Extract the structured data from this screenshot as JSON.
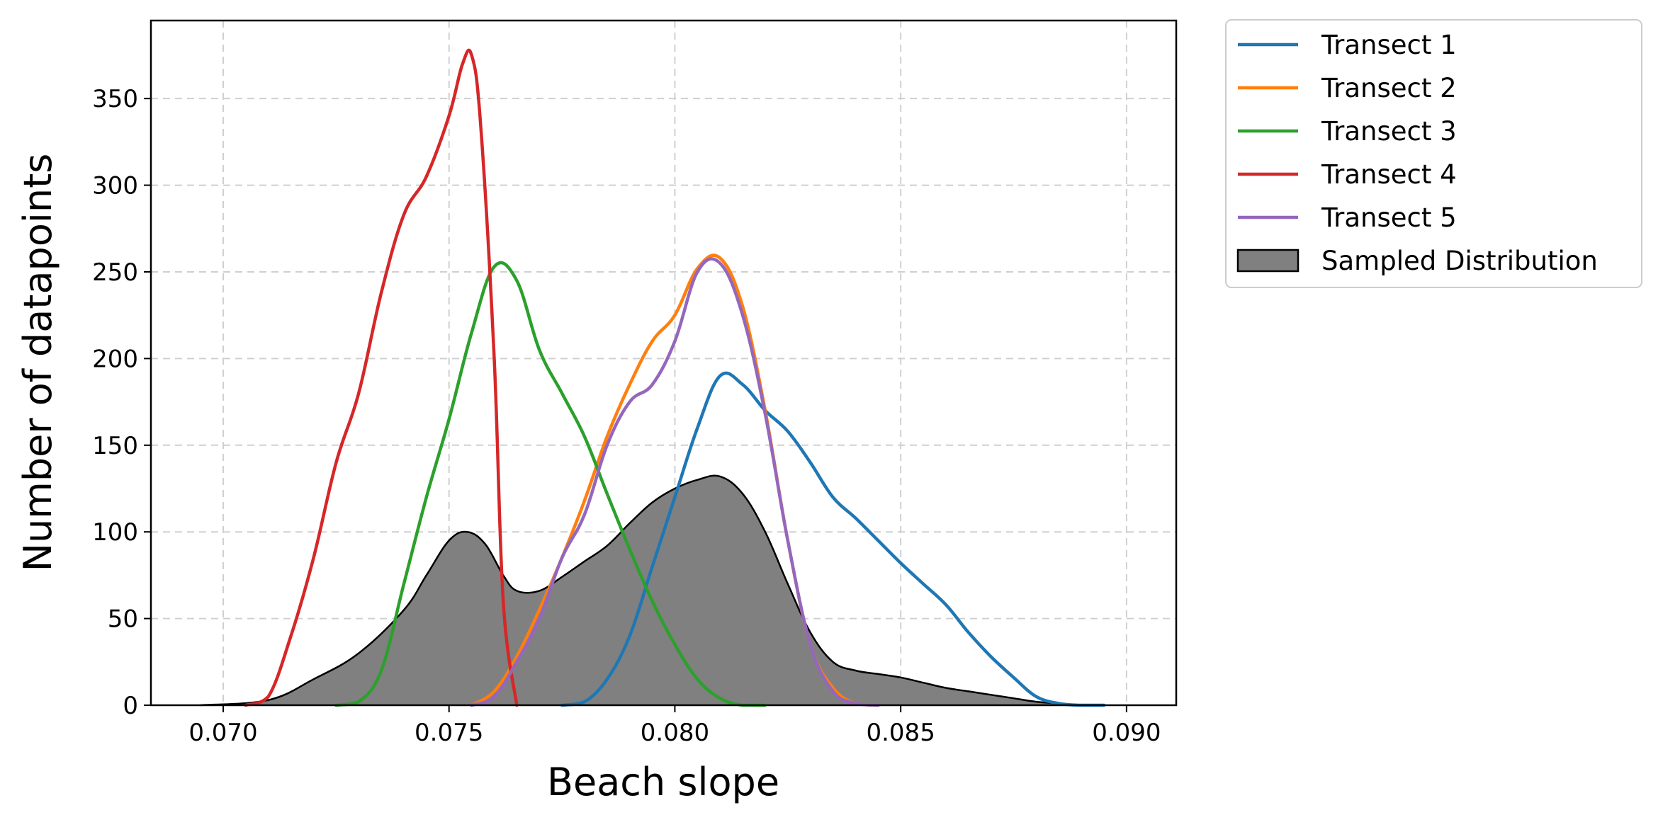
{
  "chart_data": {
    "type": "line",
    "xlabel": "Beach slope",
    "ylabel": "Number of datapoints",
    "xlim": [
      0.0684,
      0.0911
    ],
    "ylim": [
      0,
      395
    ],
    "xticks": [
      0.07,
      0.075,
      0.08,
      0.085,
      0.09
    ],
    "xtick_labels": [
      "0.070",
      "0.075",
      "0.080",
      "0.085",
      "0.090"
    ],
    "yticks": [
      0,
      50,
      100,
      150,
      200,
      250,
      300,
      350
    ],
    "ytick_labels": [
      "0",
      "50",
      "100",
      "150",
      "200",
      "250",
      "300",
      "350"
    ],
    "grid": true,
    "legend_position": "outside upper-right",
    "series": [
      {
        "name": "Transect 1",
        "color": "#1f77b4",
        "x": [
          0.0775,
          0.078,
          0.0785,
          0.079,
          0.0795,
          0.08,
          0.0805,
          0.081,
          0.0815,
          0.082,
          0.0825,
          0.083,
          0.0835,
          0.084,
          0.0845,
          0.085,
          0.0855,
          0.086,
          0.0865,
          0.087,
          0.0875,
          0.088,
          0.0885,
          0.089,
          0.0895
        ],
        "y": [
          0,
          2,
          15,
          40,
          80,
          120,
          160,
          190,
          185,
          170,
          158,
          140,
          120,
          108,
          95,
          82,
          70,
          58,
          42,
          28,
          16,
          5,
          1,
          0,
          0
        ]
      },
      {
        "name": "Transect 2",
        "color": "#ff7f0e",
        "x": [
          0.0755,
          0.076,
          0.0765,
          0.077,
          0.0775,
          0.078,
          0.0785,
          0.079,
          0.0795,
          0.08,
          0.0805,
          0.081,
          0.0815,
          0.082,
          0.0825,
          0.083,
          0.0835,
          0.084,
          0.0845
        ],
        "y": [
          0,
          8,
          28,
          55,
          85,
          118,
          155,
          185,
          210,
          225,
          252,
          258,
          230,
          170,
          95,
          35,
          10,
          1,
          0
        ]
      },
      {
        "name": "Transect 3",
        "color": "#2ca02c",
        "x": [
          0.0725,
          0.073,
          0.0735,
          0.074,
          0.0745,
          0.075,
          0.0755,
          0.076,
          0.0765,
          0.077,
          0.0775,
          0.078,
          0.0785,
          0.079,
          0.0795,
          0.08,
          0.0805,
          0.081,
          0.0815,
          0.082
        ],
        "y": [
          0,
          2,
          20,
          70,
          120,
          165,
          215,
          253,
          245,
          205,
          180,
          155,
          122,
          90,
          60,
          35,
          15,
          4,
          0,
          0
        ]
      },
      {
        "name": "Transect 4",
        "color": "#d62728",
        "x": [
          0.0705,
          0.071,
          0.0715,
          0.072,
          0.0725,
          0.073,
          0.0735,
          0.074,
          0.0745,
          0.075,
          0.0753,
          0.0755,
          0.0757,
          0.076,
          0.0762,
          0.0765
        ],
        "y": [
          0,
          5,
          40,
          85,
          140,
          180,
          238,
          283,
          305,
          340,
          370,
          375,
          335,
          200,
          60,
          0
        ]
      },
      {
        "name": "Transect 5",
        "color": "#9467bd",
        "x": [
          0.0755,
          0.076,
          0.0765,
          0.077,
          0.0775,
          0.078,
          0.0785,
          0.079,
          0.0795,
          0.08,
          0.0805,
          0.081,
          0.0815,
          0.082,
          0.0825,
          0.083,
          0.0835,
          0.084,
          0.0845
        ],
        "y": [
          0,
          5,
          25,
          50,
          85,
          110,
          150,
          175,
          185,
          210,
          250,
          255,
          225,
          168,
          95,
          35,
          8,
          1,
          0
        ]
      }
    ],
    "filled_series": {
      "name": "Sampled Distribution",
      "color": "#808080",
      "edge_color": "#000000",
      "x": [
        0.0695,
        0.071,
        0.072,
        0.073,
        0.074,
        0.0745,
        0.075,
        0.0754,
        0.0758,
        0.0762,
        0.0765,
        0.077,
        0.0775,
        0.078,
        0.0785,
        0.079,
        0.0795,
        0.08,
        0.0805,
        0.081,
        0.0815,
        0.082,
        0.0825,
        0.083,
        0.0835,
        0.084,
        0.0845,
        0.085,
        0.0855,
        0.086,
        0.0865,
        0.087,
        0.0875,
        0.088,
        0.0885,
        0.089
      ],
      "y": [
        0,
        3,
        15,
        30,
        55,
        75,
        95,
        100,
        93,
        75,
        66,
        66,
        74,
        83,
        92,
        105,
        117,
        125,
        130,
        132,
        122,
        100,
        70,
        42,
        25,
        20,
        18,
        16,
        13,
        10,
        8,
        6,
        4,
        2,
        1,
        0
      ]
    }
  }
}
